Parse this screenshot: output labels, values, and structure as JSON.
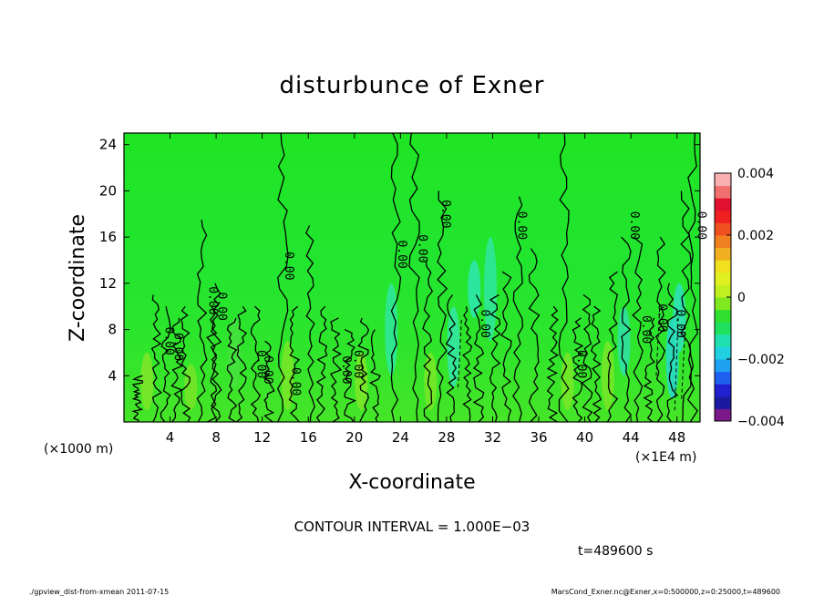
{
  "chart_data": {
    "type": "heatmap",
    "title": "disturbunce of Exner",
    "xlabel": "X-coordinate",
    "ylabel": "Z-coordinate",
    "x_unit_left": "(×1000 m)",
    "x_unit_right": "(×1E4 m)",
    "xlim": [
      0,
      50
    ],
    "ylim": [
      0,
      25
    ],
    "x_ticks": [
      4,
      8,
      12,
      16,
      20,
      24,
      28,
      32,
      36,
      40,
      44,
      48
    ],
    "y_ticks": [
      4,
      8,
      12,
      16,
      20,
      24
    ],
    "colorbar": {
      "min": -0.004,
      "max": 0.004,
      "tick_values": [
        0.004,
        0.002,
        0,
        -0.002,
        -0.004
      ],
      "tick_labels": [
        "0.004",
        "0.002",
        "0",
        "−0.002",
        "−0.004"
      ],
      "colors": [
        "#7a1a8a",
        "#1a1aa0",
        "#2020d0",
        "#2060f0",
        "#20a0f0",
        "#20d0e0",
        "#20e0b0",
        "#20e060",
        "#30e030",
        "#80e820",
        "#c0f020",
        "#e0f020",
        "#f0e020",
        "#f0b020",
        "#f08020",
        "#f05020",
        "#f02020",
        "#e01030",
        "#f07070",
        "#f8b0b0"
      ]
    },
    "contour_labels": [
      "0.00",
      "0.00",
      "0.00",
      "0.00",
      "0.00",
      "0.00",
      "0.00",
      "0.00",
      "0.00",
      "0.00",
      "0.00",
      "0.00",
      "0.00",
      "0.00",
      "0.00",
      "0.00",
      "0.00",
      "0.00",
      "0.00",
      "0.00",
      "0.00"
    ],
    "contour_interval_text": "CONTOUR INTERVAL = 1.000E−03",
    "time_text": "t=489600 s"
  },
  "footer": {
    "left": "./gpview_dist-from-xmean  2011-07-15",
    "right": "MarsCond_Exner.nc@Exner,x=0:500000,z=0:25000,t=489600"
  },
  "colors": {
    "background_green": "#22e822",
    "upper_green": "#20d838",
    "light_green": "#6ee628"
  }
}
